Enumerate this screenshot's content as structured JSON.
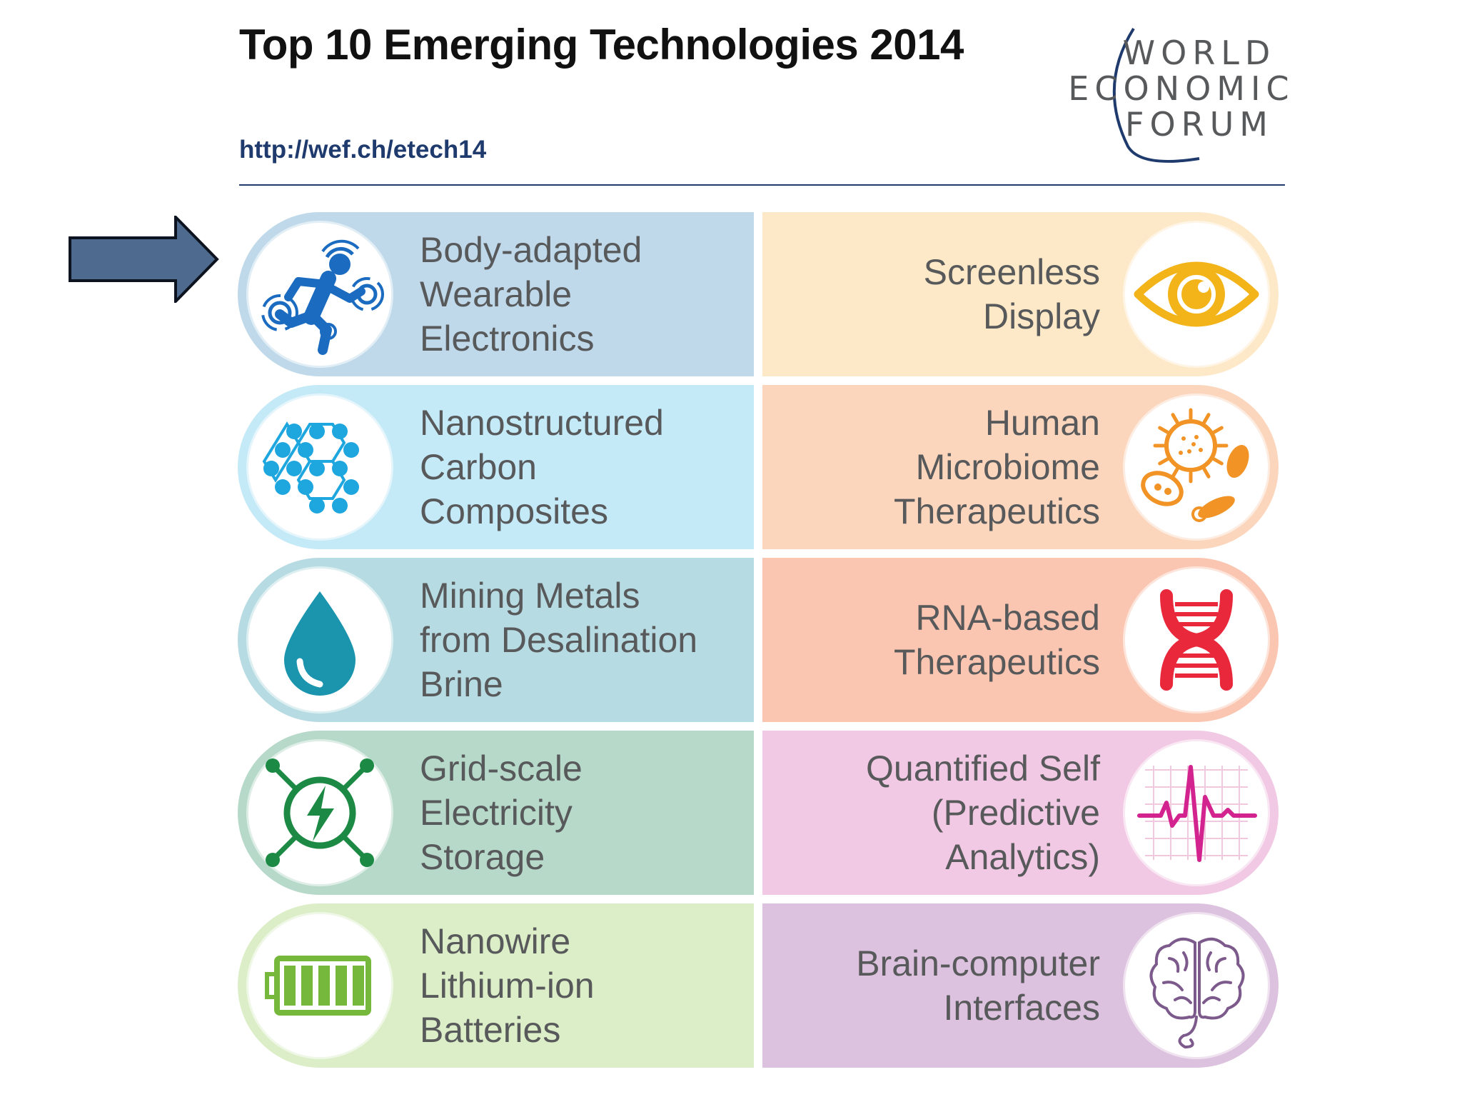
{
  "header": {
    "title": "Top 10 Emerging Technologies 2014",
    "url": "http://wef.ch/etech14",
    "logo_text": [
      "WORLD",
      "ECONOMIC",
      "FORUM"
    ]
  },
  "colors": {
    "accent": "#1f3b6e",
    "arrow": "#4f6a8f"
  },
  "cards": [
    {
      "side": "left",
      "lines": [
        "Body-adapted",
        "Wearable",
        "Electronics"
      ],
      "bg": "#bfd9ea",
      "icon": "running-person-icon",
      "icon_color": "#1b6cc0"
    },
    {
      "side": "right",
      "lines": [
        "Screenless",
        "Display"
      ],
      "bg": "#fde9c7",
      "icon": "eye-icon",
      "icon_color": "#f3b41a"
    },
    {
      "side": "left",
      "lines": [
        "Nanostructured",
        "Carbon",
        "Composites"
      ],
      "bg": "#c4e9f7",
      "icon": "carbon-molecule-icon",
      "icon_color": "#1ea6de"
    },
    {
      "side": "right",
      "lines": [
        "Human",
        "Microbiome",
        "Therapeutics"
      ],
      "bg": "#fbd6bc",
      "icon": "microbe-icon",
      "icon_color": "#f29325"
    },
    {
      "side": "left",
      "lines": [
        "Mining Metals",
        "from Desalination",
        "Brine"
      ],
      "bg": "#b7dbe2",
      "icon": "water-drop-icon",
      "icon_color": "#1a95ad"
    },
    {
      "side": "right",
      "lines": [
        "RNA-based",
        "Therapeutics"
      ],
      "bg": "#fbc6b1",
      "icon": "dna-helix-icon",
      "icon_color": "#e9283c"
    },
    {
      "side": "left",
      "lines": [
        "Grid-scale",
        "Electricity",
        "Storage"
      ],
      "bg": "#b6d9c9",
      "icon": "power-storage-icon",
      "icon_color": "#1c8a45"
    },
    {
      "side": "right",
      "lines": [
        "Quantified Self",
        "(Predictive",
        "Analytics)"
      ],
      "bg": "#f2c9e4",
      "icon": "heartbeat-chart-icon",
      "icon_color": "#d2238f"
    },
    {
      "side": "left",
      "lines": [
        "Nanowire",
        "Lithium-ion",
        "Batteries"
      ],
      "bg": "#dceec8",
      "icon": "battery-icon",
      "icon_color": "#75b83b"
    },
    {
      "side": "right",
      "lines": [
        "Brain-computer",
        "Interfaces"
      ],
      "bg": "#dcc2de",
      "icon": "brain-icon",
      "icon_color": "#7d5a8c"
    }
  ]
}
